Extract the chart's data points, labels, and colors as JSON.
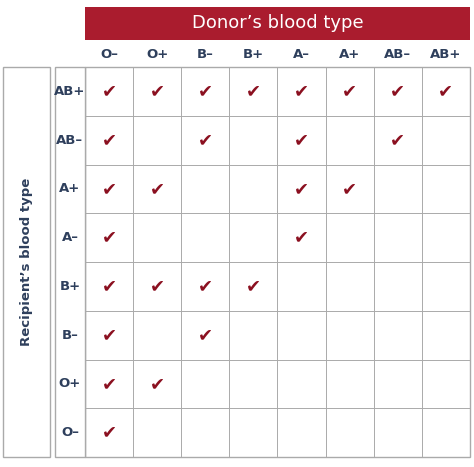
{
  "title": "Donor’s blood type",
  "ylabel": "Recipient’s blood type",
  "donor_types": [
    "O–",
    "O+",
    "B–",
    "B+",
    "A–",
    "A+",
    "AB–",
    "AB+"
  ],
  "recipient_types": [
    "AB+",
    "AB–",
    "A+",
    "A–",
    "B+",
    "B–",
    "O+",
    "O–"
  ],
  "compatibility": [
    [
      1,
      1,
      1,
      1,
      1,
      1,
      1,
      1
    ],
    [
      1,
      0,
      1,
      0,
      1,
      0,
      1,
      0
    ],
    [
      1,
      1,
      0,
      0,
      1,
      1,
      0,
      0
    ],
    [
      1,
      0,
      0,
      0,
      1,
      0,
      0,
      0
    ],
    [
      1,
      1,
      1,
      1,
      0,
      0,
      0,
      0
    ],
    [
      1,
      0,
      1,
      0,
      0,
      0,
      0,
      0
    ],
    [
      1,
      1,
      0,
      0,
      0,
      0,
      0,
      0
    ],
    [
      1,
      0,
      0,
      0,
      0,
      0,
      0,
      0
    ]
  ],
  "header_bg_color": "#AA1C2E",
  "header_text_color": "#FFFFFF",
  "grid_line_color": "#AAAAAA",
  "check_color": "#8B1020",
  "label_color": "#2E3F5C",
  "cell_bg_color": "#FFFFFF",
  "border_color": "#AAAAAA",
  "title_fontsize": 13,
  "tick_fontsize": 9.5,
  "ylabel_fontsize": 9.5,
  "check_fontsize": 13
}
